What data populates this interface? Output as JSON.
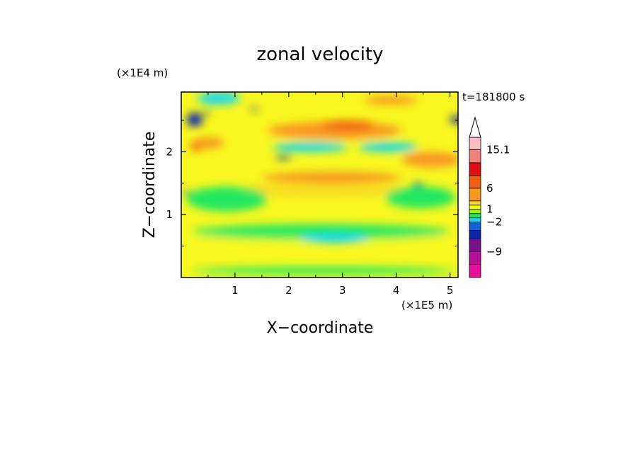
{
  "chart_data": {
    "type": "heatmap",
    "title": "zonal velocity",
    "xlabel": "X−coordinate",
    "ylabel": "Z−coordinate",
    "x_unit": "(×1E5 m)",
    "y_unit": "(×1E4 m)",
    "time_label": "t=181800 s",
    "xlim": [
      0,
      5.15
    ],
    "ylim": [
      0,
      2.95
    ],
    "x_ticks": [
      {
        "value": 1,
        "label": "1"
      },
      {
        "value": 2,
        "label": "2"
      },
      {
        "value": 3,
        "label": "3"
      },
      {
        "value": 4,
        "label": "4"
      },
      {
        "value": 5,
        "label": "5"
      }
    ],
    "y_ticks": [
      {
        "value": 1,
        "label": "1"
      },
      {
        "value": 2,
        "label": "2"
      }
    ],
    "colorbar": {
      "levels": [
        {
          "from": -15.1,
          "to": -12,
          "color": "#e8109a"
        },
        {
          "from": -12,
          "to": -9,
          "color": "#b8109a"
        },
        {
          "from": -9,
          "to": -6,
          "color": "#7a1090"
        },
        {
          "from": -6,
          "to": -4,
          "color": "#1026a8"
        },
        {
          "from": -4,
          "to": -2,
          "color": "#1060d8"
        },
        {
          "from": -2,
          "to": -1,
          "color": "#18d8f0"
        },
        {
          "from": -1,
          "to": 0,
          "color": "#20e860"
        },
        {
          "from": 0,
          "to": 1,
          "color": "#a8f010"
        },
        {
          "from": 1,
          "to": 2,
          "color": "#f8f820"
        },
        {
          "from": 2,
          "to": 3,
          "color": "#f8d820"
        },
        {
          "from": 3,
          "to": 6,
          "color": "#f89820"
        },
        {
          "from": 6,
          "to": 9,
          "color": "#f06010"
        },
        {
          "from": 9,
          "to": 12,
          "color": "#e01010"
        },
        {
          "from": 12,
          "to": 15.1,
          "color": "#f08080"
        },
        {
          "from": 15.1,
          "to": 18,
          "color": "#f8c0c0"
        }
      ],
      "labels": [
        "15.1",
        "6",
        "1",
        "−2",
        "−9"
      ],
      "label_values": [
        15.1,
        6,
        1,
        -2,
        -9
      ],
      "extend": "max"
    },
    "field": {
      "background": 1.5,
      "features": [
        {
          "x": 0.0,
          "y": 0.55,
          "w": 5.15,
          "h": 0.12,
          "v": 1.5
        },
        {
          "x": 1.6,
          "y": 2.2,
          "w": 2.5,
          "h": 0.28,
          "v": 4.5
        },
        {
          "x": 2.6,
          "y": 2.35,
          "w": 1.0,
          "h": 0.15,
          "v": 7.0
        },
        {
          "x": 0.2,
          "y": 2.05,
          "w": 0.6,
          "h": 0.18,
          "v": 5.0
        },
        {
          "x": 0.15,
          "y": 2.02,
          "w": 0.25,
          "h": 0.1,
          "v": 8.0
        },
        {
          "x": 4.1,
          "y": 1.75,
          "w": 1.1,
          "h": 0.25,
          "v": 4.0
        },
        {
          "x": 1.5,
          "y": 1.5,
          "w": 2.6,
          "h": 0.18,
          "v": 3.5
        },
        {
          "x": 0.6,
          "y": 1.3,
          "w": 4.0,
          "h": 0.18,
          "v": 2.5
        },
        {
          "x": 3.4,
          "y": 2.75,
          "w": 1.0,
          "h": 0.14,
          "v": 3.5
        },
        {
          "x": 0.3,
          "y": 2.75,
          "w": 0.8,
          "h": 0.2,
          "v": -1.5
        },
        {
          "x": 1.7,
          "y": 2.0,
          "w": 1.4,
          "h": 0.15,
          "v": -1.5
        },
        {
          "x": 3.3,
          "y": 2.0,
          "w": 1.1,
          "h": 0.15,
          "v": -1.5
        },
        {
          "x": 0.1,
          "y": 1.05,
          "w": 1.5,
          "h": 0.4,
          "v": -0.5
        },
        {
          "x": 0.2,
          "y": 0.6,
          "w": 4.8,
          "h": 0.25,
          "v": -0.5
        },
        {
          "x": 0.2,
          "y": 0.05,
          "w": 4.9,
          "h": 0.12,
          "v": -0.5
        },
        {
          "x": 3.8,
          "y": 1.1,
          "w": 1.3,
          "h": 0.35,
          "v": -0.5
        },
        {
          "x": 2.2,
          "y": 0.55,
          "w": 1.3,
          "h": 0.15,
          "v": -1.5
        },
        {
          "x": 0.1,
          "y": 2.4,
          "w": 0.3,
          "h": 0.22,
          "v": -5.0
        },
        {
          "x": 5.0,
          "y": 2.45,
          "w": 0.25,
          "h": 0.12,
          "v": -5.0
        },
        {
          "x": 1.75,
          "y": 1.88,
          "w": 0.3,
          "h": 0.06,
          "v": -5.0
        },
        {
          "x": 0.4,
          "y": 2.6,
          "w": 0.15,
          "h": 0.05,
          "v": -5.0
        },
        {
          "x": 4.3,
          "y": 1.45,
          "w": 0.2,
          "h": 0.06,
          "v": -5.0
        },
        {
          "x": 1.3,
          "y": 2.65,
          "w": 0.12,
          "h": 0.06,
          "v": -5.0
        },
        {
          "x": 0.05,
          "y": 1.32,
          "w": 0.12,
          "h": 0.06,
          "v": -5.0
        }
      ]
    }
  }
}
